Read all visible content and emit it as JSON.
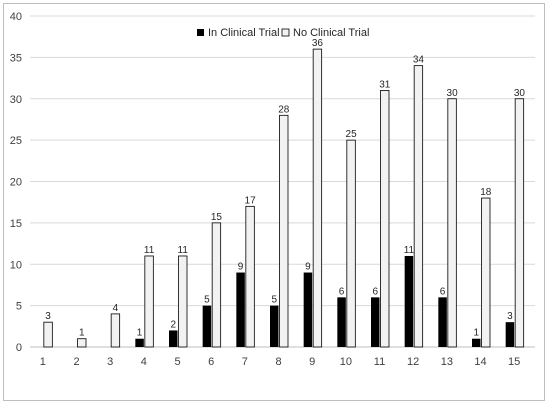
{
  "chart_data": {
    "type": "bar",
    "title": "",
    "xlabel": "",
    "ylabel": "",
    "categories": [
      "1",
      "2",
      "3",
      "4",
      "5",
      "6",
      "7",
      "8",
      "9",
      "10",
      "11",
      "12",
      "13",
      "14",
      "15"
    ],
    "series": [
      {
        "name": "In Clinical Trial",
        "color": "#000000",
        "values": [
          0,
          0,
          0,
          1,
          2,
          5,
          9,
          5,
          9,
          6,
          6,
          11,
          6,
          1,
          3
        ]
      },
      {
        "name": "No Clinical Trial",
        "color": "#f2f2f2",
        "values": [
          3,
          1,
          4,
          11,
          11,
          15,
          17,
          28,
          36,
          25,
          31,
          34,
          30,
          18,
          30
        ]
      }
    ],
    "ylim": [
      0,
      40
    ],
    "yticks": [
      0,
      5,
      10,
      15,
      20,
      25,
      30,
      35,
      40
    ],
    "grid": "horizontal",
    "legend_position": "top-center"
  }
}
